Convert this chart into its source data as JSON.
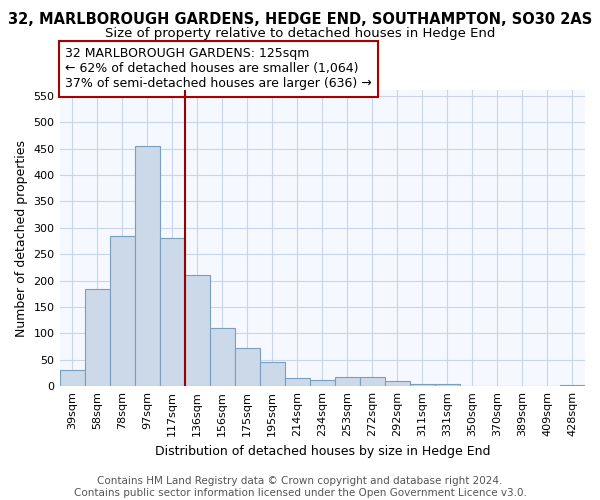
{
  "title": "32, MARLBOROUGH GARDENS, HEDGE END, SOUTHAMPTON, SO30 2AS",
  "subtitle": "Size of property relative to detached houses in Hedge End",
  "xlabel": "Distribution of detached houses by size in Hedge End",
  "ylabel": "Number of detached properties",
  "categories": [
    "39sqm",
    "58sqm",
    "78sqm",
    "97sqm",
    "117sqm",
    "136sqm",
    "156sqm",
    "175sqm",
    "195sqm",
    "214sqm",
    "234sqm",
    "253sqm",
    "272sqm",
    "292sqm",
    "311sqm",
    "331sqm",
    "350sqm",
    "370sqm",
    "389sqm",
    "409sqm",
    "428sqm"
  ],
  "values": [
    30,
    185,
    285,
    455,
    280,
    210,
    110,
    72,
    46,
    15,
    12,
    18,
    18,
    9,
    5,
    4,
    0,
    0,
    0,
    0,
    3
  ],
  "bar_color": "#ccd9e8",
  "bar_edge_color": "#7a9ec0",
  "background_color": "#ffffff",
  "plot_bg_color": "#f5f8ff",
  "grid_color": "#c8d4e8",
  "vline_x_index": 4.5,
  "vline_color": "#990000",
  "annotation_text": "32 MARLBOROUGH GARDENS: 125sqm\n← 62% of detached houses are smaller (1,064)\n37% of semi-detached houses are larger (636) →",
  "annotation_box_color": "#ffffff",
  "annotation_box_edge_color": "#aa0000",
  "ylim": [
    0,
    560
  ],
  "yticks": [
    0,
    50,
    100,
    150,
    200,
    250,
    300,
    350,
    400,
    450,
    500,
    550
  ],
  "footer_text": "Contains HM Land Registry data © Crown copyright and database right 2024.\nContains public sector information licensed under the Open Government Licence v3.0.",
  "title_fontsize": 10.5,
  "subtitle_fontsize": 9.5,
  "label_fontsize": 9,
  "tick_fontsize": 8,
  "annotation_fontsize": 9,
  "footer_fontsize": 7.5
}
